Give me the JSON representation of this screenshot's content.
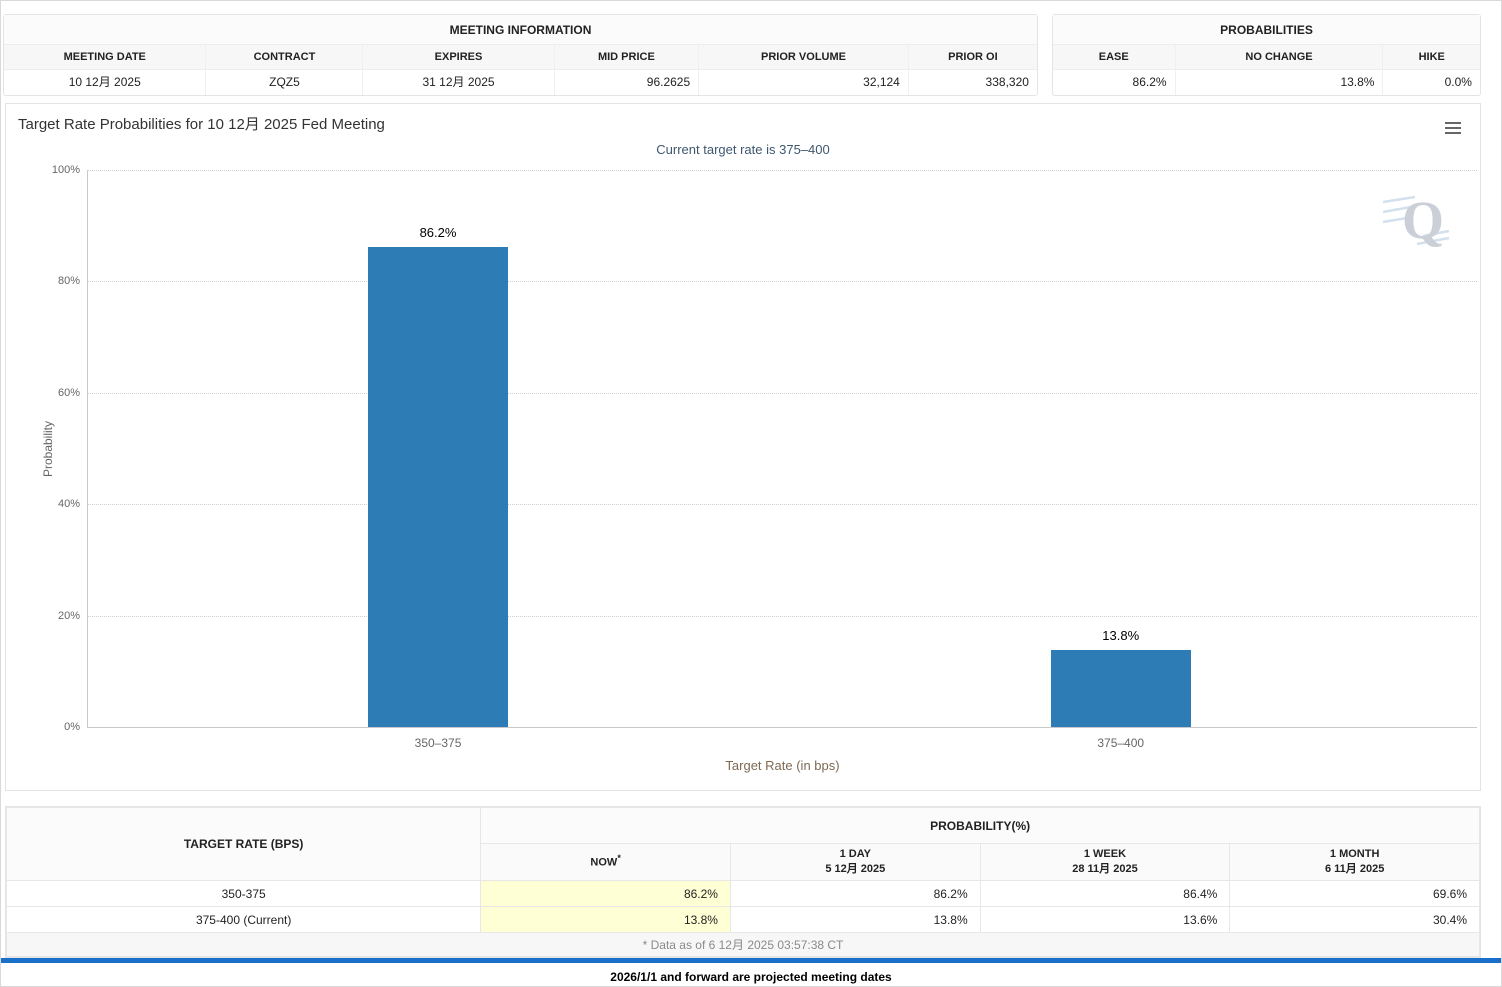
{
  "colors": {
    "bar": "#2d7cb5",
    "now_highlight": "#ffffd6",
    "divider": "#1a6fc9"
  },
  "meeting_info": {
    "title": "MEETING INFORMATION",
    "headers": [
      "MEETING DATE",
      "CONTRACT",
      "EXPIRES",
      "MID PRICE",
      "PRIOR VOLUME",
      "PRIOR OI"
    ],
    "values": [
      "10 12月 2025",
      "ZQZ5",
      "31 12月 2025",
      "96.2625",
      "32,124",
      "338,320"
    ]
  },
  "probabilities_panel": {
    "title": "PROBABILITIES",
    "headers": [
      "EASE",
      "NO CHANGE",
      "HIKE"
    ],
    "values": [
      "86.2%",
      "13.8%",
      "0.0%"
    ]
  },
  "chart_data": {
    "type": "bar",
    "title": "Target Rate Probabilities for 10 12月 2025 Fed Meeting",
    "subtitle": "Current target rate is 375–400",
    "categories": [
      "350–375",
      "375–400"
    ],
    "values": [
      86.2,
      13.8
    ],
    "value_labels": [
      "86.2%",
      "13.8%"
    ],
    "xlabel": "Target Rate (in bps)",
    "ylabel": "Probability",
    "ylim": [
      0,
      100
    ],
    "yticks_top_down": [
      "100%",
      "80%",
      "60%",
      "40%",
      "20%",
      "0%"
    ],
    "grid": "dotted-horizontal",
    "legend": "none",
    "watermark": "Q"
  },
  "rate_table": {
    "col_header": "TARGET RATE (BPS)",
    "group_header": "PROBABILITY(%)",
    "columns": [
      {
        "line1": "NOW",
        "sup": "*",
        "line2": ""
      },
      {
        "line1": "1 DAY",
        "line2": "5 12月 2025"
      },
      {
        "line1": "1 WEEK",
        "line2": "28 11月 2025"
      },
      {
        "line1": "1 MONTH",
        "line2": "6 11月 2025"
      }
    ],
    "rows": [
      {
        "rate": "350-375",
        "values": [
          "86.2%",
          "86.2%",
          "86.4%",
          "69.6%"
        ]
      },
      {
        "rate": "375-400 (Current)",
        "values": [
          "13.8%",
          "13.8%",
          "13.6%",
          "30.4%"
        ]
      }
    ],
    "footnote": "* Data as of 6 12月 2025 03:57:38 CT"
  },
  "page": {
    "footer_note": "2026/1/1 and forward are projected meeting dates"
  }
}
